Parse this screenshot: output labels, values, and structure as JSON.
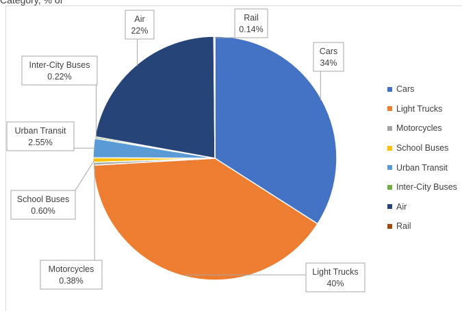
{
  "header": {
    "partial_text": "Category, % of"
  },
  "chart_data": {
    "type": "pie",
    "title": "",
    "legend_position": "right",
    "slices": [
      {
        "name": "Cars",
        "value": 34,
        "label": "34%",
        "color": "#4472C4"
      },
      {
        "name": "Light Trucks",
        "value": 40,
        "label": "40%",
        "color": "#ED7D31"
      },
      {
        "name": "Motorcycles",
        "value": 0.38,
        "label": "0.38%",
        "color": "#A5A5A5"
      },
      {
        "name": "School Buses",
        "value": 0.6,
        "label": "0.60%",
        "color": "#FFC000"
      },
      {
        "name": "Urban Transit",
        "value": 2.55,
        "label": "2.55%",
        "color": "#5B9BD5"
      },
      {
        "name": "Inter-City Buses",
        "value": 0.22,
        "label": "0.22%",
        "color": "#70AD47"
      },
      {
        "name": "Air",
        "value": 22,
        "label": "22%",
        "color": "#264478"
      },
      {
        "name": "Rail",
        "value": 0.14,
        "label": "0.14%",
        "color": "#9E480E"
      }
    ]
  }
}
